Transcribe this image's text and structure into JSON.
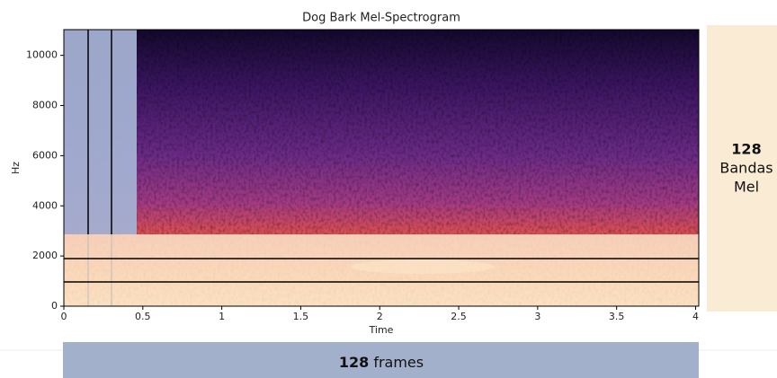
{
  "chart_data": {
    "type": "spectrogram",
    "title": "Dog Bark Mel-Spectrogram",
    "x_label": "Time",
    "y_label": "Hz",
    "xlim": [
      0,
      4.02
    ],
    "ylim": [
      0,
      11025
    ],
    "xticks": [
      0,
      0.5,
      1,
      1.5,
      2,
      2.5,
      3,
      3.5,
      4
    ],
    "yticks": [
      0,
      2000,
      4000,
      6000,
      8000,
      10000
    ]
  },
  "annotations": {
    "mel_bands": {
      "count": 128,
      "line1": "Bandas",
      "line2": "Mel"
    },
    "frames": {
      "count": 128,
      "text": "frames"
    }
  }
}
